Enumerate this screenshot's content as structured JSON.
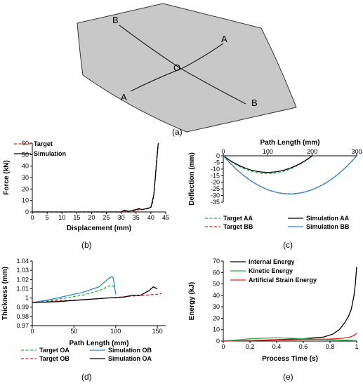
{
  "captions": {
    "a": "(a)",
    "b": "(b)",
    "c": "(c)",
    "d": "(d)",
    "e": "(e)"
  },
  "sheet": {
    "point_labels": {
      "b_top": "B",
      "a_right": "A",
      "o_center": "O",
      "a_left": "A",
      "b_bottom": "B"
    }
  },
  "colors": {
    "sheet_fill": "#c8c8c8",
    "red": "#e0231c",
    "black": "#000000",
    "green": "#2bb04a",
    "blue": "#2a8ad4",
    "purple": "#8c4fc0"
  },
  "chart_data": [
    {
      "id": "b",
      "type": "line",
      "xlabel": "Displacement  (mm)",
      "ylabel": "Force (kN)",
      "xlim": [
        0,
        45
      ],
      "ylim": [
        0,
        60
      ],
      "xticks": [
        0,
        5,
        10,
        15,
        20,
        25,
        30,
        35,
        40,
        45
      ],
      "yticks": [
        0,
        10,
        20,
        30,
        40,
        50,
        60
      ],
      "legend_position": "top-left",
      "series": [
        {
          "name": "Target",
          "color": "#e0231c",
          "dash": true,
          "x": [
            0,
            30,
            31.5,
            33,
            34.5,
            36,
            38,
            39.5,
            40.5,
            41,
            41.5,
            42,
            42.5
          ],
          "y": [
            0,
            0,
            0.6,
            0.4,
            0.8,
            2,
            2.5,
            3,
            6,
            15,
            30,
            48,
            59
          ]
        },
        {
          "name": "Simulation",
          "color": "#000000",
          "dash": false,
          "x": [
            0,
            30,
            31,
            32.5,
            34,
            35,
            36,
            37,
            38.5,
            40,
            41,
            41.5,
            42,
            42.5
          ],
          "y": [
            0,
            0,
            1.5,
            0.5,
            1.6,
            2,
            3,
            2,
            3,
            4,
            15,
            30,
            45,
            60
          ]
        }
      ]
    },
    {
      "id": "c",
      "type": "line",
      "xlabel": "Path Length (mm)",
      "ylabel": "Deflection  (mm)",
      "xlim": [
        0,
        300
      ],
      "ylim": [
        -35,
        0
      ],
      "xticks": [
        0,
        100,
        200,
        300
      ],
      "yticks": [
        0,
        -5,
        -10,
        -15,
        -20,
        -25,
        -30,
        -35
      ],
      "legend_position": "bottom",
      "series": [
        {
          "name": "Target AA",
          "color": "#2bb04a",
          "dash": true,
          "shape": "arc",
          "length": 200,
          "depth": -13.5
        },
        {
          "name": "Target BB",
          "color": "#e0231c",
          "dash": true,
          "shape": "arc",
          "length": 300,
          "depth": -28.7
        },
        {
          "name": "Simulation AA",
          "color": "#000000",
          "dash": false,
          "shape": "arc",
          "length": 200,
          "depth": -12.5
        },
        {
          "name": "Simulation BB",
          "color": "#2a8ad4",
          "dash": false,
          "shape": "arc",
          "length": 300,
          "depth": -28.8
        }
      ]
    },
    {
      "id": "d",
      "type": "line",
      "xlabel": "Path Length (mm)",
      "ylabel": "Thickness  (mm)",
      "xlim": [
        0,
        160
      ],
      "ylim": [
        0.97,
        1.04
      ],
      "xticks": [
        0,
        50,
        100,
        150
      ],
      "yticks": [
        0.97,
        0.98,
        0.99,
        1,
        1.01,
        1.02,
        1.03,
        1.04
      ],
      "legend_position": "bottom",
      "series": [
        {
          "name": "Target OA",
          "color": "#2bb04a",
          "dash": true,
          "x": [
            0,
            20,
            40,
            60,
            80,
            90,
            95,
            100
          ],
          "y": [
            0.995,
            0.997,
            1.0,
            1.003,
            1.008,
            1.012,
            1.014,
            1.011
          ]
        },
        {
          "name": "Target OB",
          "color": "#e0231c",
          "dash": true,
          "x": [
            0,
            30,
            60,
            90,
            120,
            150,
            155
          ],
          "y": [
            0.995,
            0.997,
            0.998,
            1.0,
            1.002,
            1.004,
            1.005
          ]
        },
        {
          "name": "Simulation OB",
          "color": "#2a8ad4",
          "dash": false,
          "x": [
            0,
            20,
            40,
            60,
            80,
            90,
            95,
            97,
            100
          ],
          "y": [
            0.995,
            0.998,
            1.002,
            1.006,
            1.012,
            1.02,
            1.023,
            1.022,
            1.004
          ]
        },
        {
          "name": "Simulation OA",
          "color": "#000000",
          "dash": false,
          "x": [
            0,
            30,
            60,
            90,
            110,
            120,
            130,
            140,
            145,
            150
          ],
          "y": [
            0.995,
            0.996,
            0.998,
            1.0,
            1.001,
            1.003,
            1.003,
            1.008,
            1.012,
            1.01
          ]
        }
      ]
    },
    {
      "id": "e",
      "type": "line",
      "xlabel": "Process Time (s)",
      "ylabel": "Energy (kJ)",
      "xlim": [
        0,
        1
      ],
      "ylim": [
        0,
        70
      ],
      "xticks": [
        0,
        0.2,
        0.4,
        0.6,
        0.8,
        1
      ],
      "yticks": [
        0,
        10,
        20,
        30,
        40,
        50,
        60,
        70
      ],
      "legend_position": "top-left",
      "series": [
        {
          "name": "Internal Energy",
          "color": "#000000",
          "dash": false,
          "x": [
            0,
            0.2,
            0.4,
            0.6,
            0.75,
            0.82,
            0.87,
            0.91,
            0.94,
            0.96,
            0.98,
            0.99,
            1.0
          ],
          "y": [
            0,
            0.4,
            1.2,
            2.0,
            3.5,
            6,
            10,
            16,
            22,
            28,
            40,
            50,
            65
          ]
        },
        {
          "name": "Kinetic Energy",
          "color": "#2bb04a",
          "dash": false,
          "x": [
            0,
            0.1,
            0.2,
            0.3,
            0.4,
            0.5,
            0.6,
            0.7,
            0.8,
            0.9,
            1.0
          ],
          "y": [
            0,
            1.0,
            2.0,
            2.6,
            2.8,
            2.5,
            2.0,
            1.6,
            1.2,
            0.8,
            0.4
          ]
        },
        {
          "name": "Artificial Strain Energy",
          "color": "#e0231c",
          "dash": false,
          "x": [
            0,
            0.2,
            0.4,
            0.6,
            0.8,
            0.9,
            0.95,
            0.98,
            1.0
          ],
          "y": [
            0,
            0.4,
            1.0,
            1.4,
            1.8,
            2.5,
            3.5,
            5,
            7
          ]
        }
      ]
    }
  ]
}
